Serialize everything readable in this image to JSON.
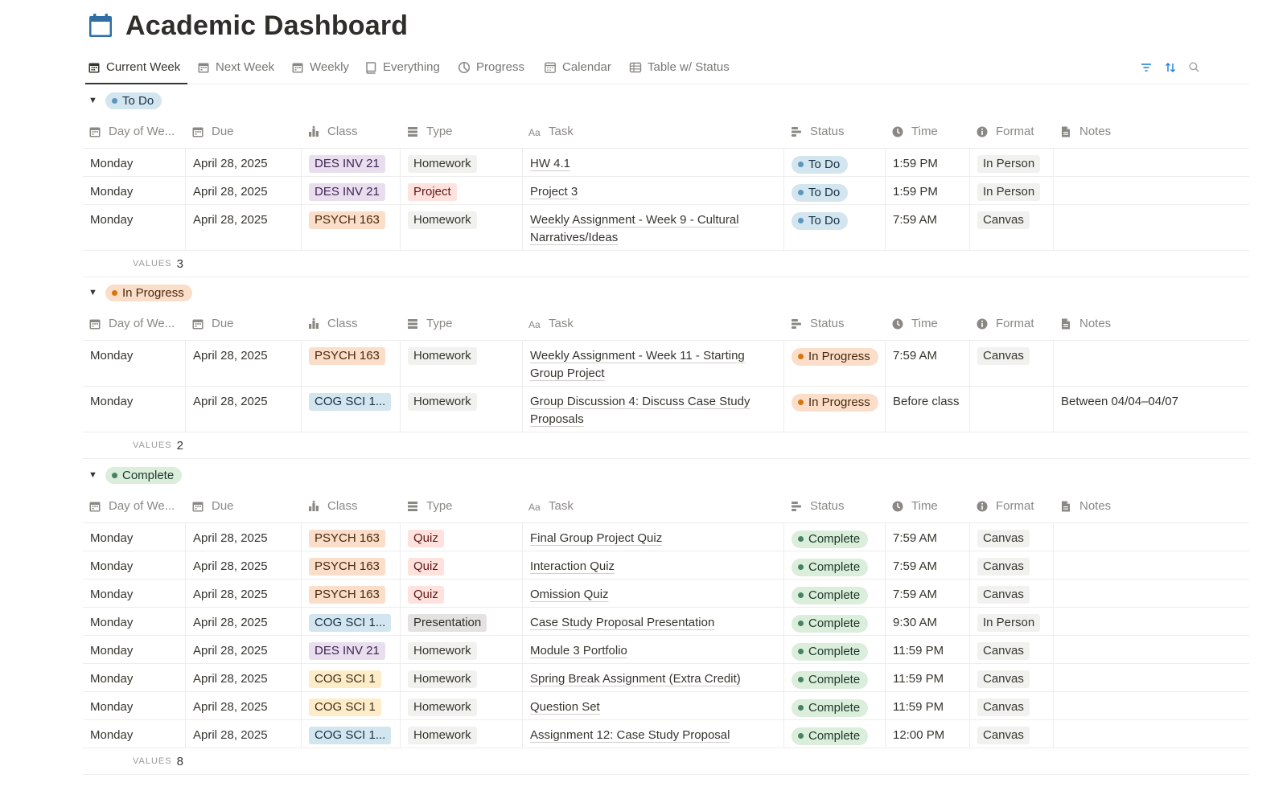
{
  "title": "Academic Dashboard",
  "tabs": [
    {
      "label": "Current Week",
      "icon": "calendar-icon",
      "active": true
    },
    {
      "label": "Next Week",
      "icon": "calendar-icon"
    },
    {
      "label": "Weekly",
      "icon": "calendar-icon"
    },
    {
      "label": "Everything",
      "icon": "book-icon"
    },
    {
      "label": "Progress",
      "icon": "pie-chart-icon"
    },
    {
      "label": "Calendar",
      "icon": "calendar-grid-icon"
    },
    {
      "label": "Table w/ Status",
      "icon": "table-icon"
    }
  ],
  "toolbar": {
    "filter_icon": "filter-icon",
    "sort_icon": "sort-icon",
    "search_icon": "search-icon",
    "accent": "#2383e2"
  },
  "columns": [
    "Day of We...",
    "Due",
    "Class",
    "Type",
    "Task",
    "Status",
    "Time",
    "Format",
    "Notes"
  ],
  "calc_label": "VALUES",
  "colors": {
    "class": {
      "DES INV 21": {
        "bg": "#e8deee",
        "fg": "#412454"
      },
      "PSYCH 163": {
        "bg": "#fadec9",
        "fg": "#49290e"
      },
      "COG SCI 1...": {
        "bg": "#d3e5ef",
        "fg": "#183347"
      },
      "COG SCI 1": {
        "bg": "#fdecc8",
        "fg": "#402c1b"
      }
    },
    "type": {
      "Homework": {
        "bg": "#f1f1ef",
        "fg": "#37352f"
      },
      "Project": {
        "bg": "#ffe2dd",
        "fg": "#5d1715"
      },
      "Quiz": {
        "bg": "#ffe2dd",
        "fg": "#5d1715"
      },
      "Presentation": {
        "bg": "#e3e2e0",
        "fg": "#32302c"
      }
    },
    "status": {
      "To Do": {
        "bg": "#d3e5ef",
        "fg": "#183347",
        "dot": "#5b97bd"
      },
      "In Progress": {
        "bg": "#fadec9",
        "fg": "#49290e",
        "dot": "#d9730d"
      },
      "Complete": {
        "bg": "#dbeddb",
        "fg": "#1c3829",
        "dot": "#448361"
      }
    },
    "format_bg": "#f1f1ef"
  },
  "groups": [
    {
      "status": "To Do",
      "count": "3",
      "rows": [
        {
          "day": "Monday",
          "due": "April 28, 2025",
          "class": "DES INV 21",
          "type": "Homework",
          "task": "HW 4.1",
          "status": "To Do",
          "time": "1:59 PM",
          "format": "In Person",
          "notes": ""
        },
        {
          "day": "Monday",
          "due": "April 28, 2025",
          "class": "DES INV 21",
          "type": "Project",
          "task": "Project 3",
          "status": "To Do",
          "time": "1:59 PM",
          "format": "In Person",
          "notes": ""
        },
        {
          "day": "Monday",
          "due": "April 28, 2025",
          "class": "PSYCH 163",
          "type": "Homework",
          "task": "Weekly Assignment - Week 9 - Cultural Narratives/Ideas",
          "status": "To Do",
          "time": "7:59 AM",
          "format": "Canvas",
          "notes": ""
        }
      ]
    },
    {
      "status": "In Progress",
      "count": "2",
      "rows": [
        {
          "day": "Monday",
          "due": "April 28, 2025",
          "class": "PSYCH 163",
          "type": "Homework",
          "task": "Weekly Assignment - Week 11 - Starting Group Project",
          "status": "In Progress",
          "time": "7:59 AM",
          "format": "Canvas",
          "notes": ""
        },
        {
          "day": "Monday",
          "due": "April 28, 2025",
          "class": "COG SCI 1...",
          "type": "Homework",
          "task": "Group Discussion 4: Discuss Case Study Proposals",
          "status": "In Progress",
          "time": "Before class",
          "format": "",
          "notes": "Between 04/04–04/07"
        }
      ]
    },
    {
      "status": "Complete",
      "count": "8",
      "rows": [
        {
          "day": "Monday",
          "due": "April 28, 2025",
          "class": "PSYCH 163",
          "type": "Quiz",
          "task": "Final Group Project Quiz",
          "status": "Complete",
          "time": "7:59 AM",
          "format": "Canvas",
          "notes": ""
        },
        {
          "day": "Monday",
          "due": "April 28, 2025",
          "class": "PSYCH 163",
          "type": "Quiz",
          "task": "Interaction Quiz",
          "status": "Complete",
          "time": "7:59 AM",
          "format": "Canvas",
          "notes": ""
        },
        {
          "day": "Monday",
          "due": "April 28, 2025",
          "class": "PSYCH 163",
          "type": "Quiz",
          "task": "Omission Quiz",
          "status": "Complete",
          "time": "7:59 AM",
          "format": "Canvas",
          "notes": ""
        },
        {
          "day": "Monday",
          "due": "April 28, 2025",
          "class": "COG SCI 1...",
          "type": "Presentation",
          "task": "Case Study Proposal Presentation",
          "status": "Complete",
          "time": "9:30 AM",
          "format": "In Person",
          "notes": ""
        },
        {
          "day": "Monday",
          "due": "April 28, 2025",
          "class": "DES INV 21",
          "type": "Homework",
          "task": "Module 3 Portfolio",
          "status": "Complete",
          "time": "11:59 PM",
          "format": "Canvas",
          "notes": ""
        },
        {
          "day": "Monday",
          "due": "April 28, 2025",
          "class": "COG SCI 1",
          "type": "Homework",
          "task": "Spring Break Assignment (Extra Credit)",
          "status": "Complete",
          "time": "11:59 PM",
          "format": "Canvas",
          "notes": ""
        },
        {
          "day": "Monday",
          "due": "April 28, 2025",
          "class": "COG SCI 1",
          "type": "Homework",
          "task": "Question Set",
          "status": "Complete",
          "time": "11:59 PM",
          "format": "Canvas",
          "notes": ""
        },
        {
          "day": "Monday",
          "due": "April 28, 2025",
          "class": "COG SCI 1...",
          "type": "Homework",
          "task": "Assignment 12: Case Study Proposal",
          "status": "Complete",
          "time": "12:00 PM",
          "format": "Canvas",
          "notes": ""
        }
      ]
    }
  ]
}
